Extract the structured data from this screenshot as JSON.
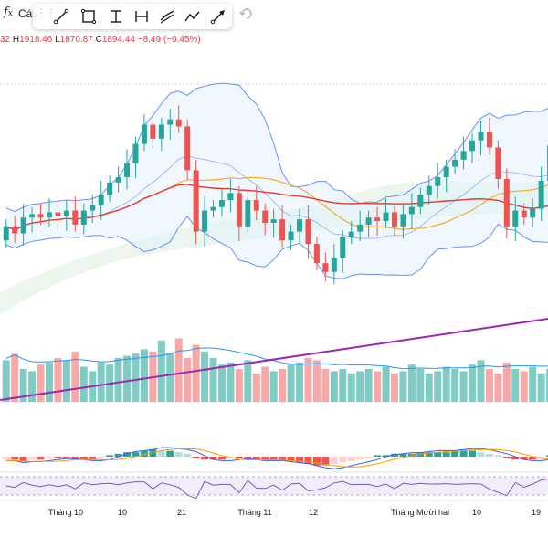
{
  "toolbar": {
    "fx_label": "Các",
    "tools": [
      {
        "icon": "trend-line-icon"
      },
      {
        "icon": "rectangle-icon"
      },
      {
        "icon": "vertical-range-icon"
      },
      {
        "icon": "horizontal-range-icon"
      },
      {
        "icon": "brush-icon"
      },
      {
        "icon": "path-icon"
      },
      {
        "icon": "arrow-icon"
      }
    ],
    "undo_icon": "undo-icon"
  },
  "legend": {
    "open_fragment": "32",
    "high_key": "H",
    "high_val": "1918.46",
    "low_key": "L",
    "low_val": "1870.87",
    "close_key": "C",
    "close_val": "1894.44",
    "change": "−8.49 (−0.45%)"
  },
  "colors": {
    "up": "#26a69a",
    "down": "#ef5350",
    "bollinger": "#2962ff",
    "ma_red": "#e53935",
    "ma_orange": "#f5a623",
    "ma_purple": "#9c27b0",
    "rsi_band": "#7e57c2"
  },
  "x_axis": {
    "labels": [
      "Tháng 10",
      "10",
      "21",
      "Tháng 11",
      "12",
      "Tháng Mười hai",
      "10",
      "19"
    ]
  },
  "chart_data": {
    "type": "candlestick",
    "candles": [
      {
        "o": 1880,
        "c": 1888
      },
      {
        "o": 1888,
        "c": 1884
      },
      {
        "o": 1884,
        "c": 1893
      },
      {
        "o": 1893,
        "c": 1895
      },
      {
        "o": 1895,
        "c": 1893
      },
      {
        "o": 1893,
        "c": 1896
      },
      {
        "o": 1896,
        "c": 1894
      },
      {
        "o": 1894,
        "c": 1897
      },
      {
        "o": 1897,
        "c": 1889
      },
      {
        "o": 1889,
        "c": 1897
      },
      {
        "o": 1897,
        "c": 1900
      },
      {
        "o": 1900,
        "c": 1906
      },
      {
        "o": 1906,
        "c": 1913
      },
      {
        "o": 1913,
        "c": 1916
      },
      {
        "o": 1916,
        "c": 1924
      },
      {
        "o": 1924,
        "c": 1935
      },
      {
        "o": 1935,
        "c": 1946
      },
      {
        "o": 1946,
        "c": 1938
      },
      {
        "o": 1938,
        "c": 1946
      },
      {
        "o": 1946,
        "c": 1949
      },
      {
        "o": 1949,
        "c": 1945
      },
      {
        "o": 1945,
        "c": 1920
      },
      {
        "o": 1920,
        "c": 1885
      },
      {
        "o": 1885,
        "c": 1897
      },
      {
        "o": 1897,
        "c": 1899
      },
      {
        "o": 1899,
        "c": 1903
      },
      {
        "o": 1903,
        "c": 1907
      },
      {
        "o": 1907,
        "c": 1888
      },
      {
        "o": 1888,
        "c": 1903
      },
      {
        "o": 1903,
        "c": 1897
      },
      {
        "o": 1897,
        "c": 1890
      },
      {
        "o": 1890,
        "c": 1892
      },
      {
        "o": 1892,
        "c": 1880
      },
      {
        "o": 1880,
        "c": 1885
      },
      {
        "o": 1885,
        "c": 1892
      },
      {
        "o": 1892,
        "c": 1878
      },
      {
        "o": 1878,
        "c": 1867
      },
      {
        "o": 1867,
        "c": 1862
      },
      {
        "o": 1862,
        "c": 1870
      },
      {
        "o": 1870,
        "c": 1882
      },
      {
        "o": 1882,
        "c": 1885
      },
      {
        "o": 1885,
        "c": 1889
      },
      {
        "o": 1889,
        "c": 1893
      },
      {
        "o": 1893,
        "c": 1891
      },
      {
        "o": 1891,
        "c": 1896
      },
      {
        "o": 1896,
        "c": 1888
      },
      {
        "o": 1888,
        "c": 1895
      },
      {
        "o": 1895,
        "c": 1899
      },
      {
        "o": 1899,
        "c": 1906
      },
      {
        "o": 1906,
        "c": 1911
      },
      {
        "o": 1911,
        "c": 1916
      },
      {
        "o": 1916,
        "c": 1922
      },
      {
        "o": 1922,
        "c": 1926
      },
      {
        "o": 1926,
        "c": 1931
      },
      {
        "o": 1931,
        "c": 1937
      },
      {
        "o": 1937,
        "c": 1942
      },
      {
        "o": 1942,
        "c": 1933
      },
      {
        "o": 1933,
        "c": 1915
      },
      {
        "o": 1915,
        "c": 1888
      },
      {
        "o": 1888,
        "c": 1897
      },
      {
        "o": 1897,
        "c": 1893
      },
      {
        "o": 1893,
        "c": 1898
      },
      {
        "o": 1898,
        "c": 1914
      },
      {
        "o": 1914,
        "c": 1934
      }
    ],
    "volume": [
      38,
      44,
      30,
      28,
      34,
      36,
      40,
      38,
      46,
      32,
      28,
      36,
      34,
      40,
      42,
      44,
      48,
      46,
      56,
      44,
      58,
      40,
      52,
      46,
      40,
      34,
      36,
      30,
      38,
      26,
      32,
      28,
      30,
      34,
      36,
      40,
      38,
      30,
      28,
      30,
      26,
      28,
      30,
      28,
      32,
      26,
      28,
      34,
      30,
      26,
      28,
      32,
      30,
      28,
      34,
      38,
      30,
      26,
      36,
      30,
      28,
      32,
      26,
      30
    ],
    "macd_hist": [
      -2,
      -2,
      -3,
      -2,
      -2,
      -1,
      -1,
      -1,
      -2,
      -2,
      -2,
      -1,
      1,
      2,
      3,
      3,
      4,
      5,
      4,
      4,
      3,
      2,
      -1,
      -2,
      -2,
      -2,
      -1,
      -1,
      -2,
      -2,
      -2,
      -2,
      -3,
      -3,
      -4,
      -5,
      -6,
      -6,
      -5,
      -4,
      -3,
      -2,
      -1,
      1,
      1,
      2,
      2,
      2,
      3,
      3,
      3,
      3,
      4,
      4,
      4,
      3,
      2,
      1,
      -1,
      -2,
      -2,
      -2,
      -1,
      1
    ],
    "title": "",
    "xlabel": "",
    "ylabel": ""
  }
}
